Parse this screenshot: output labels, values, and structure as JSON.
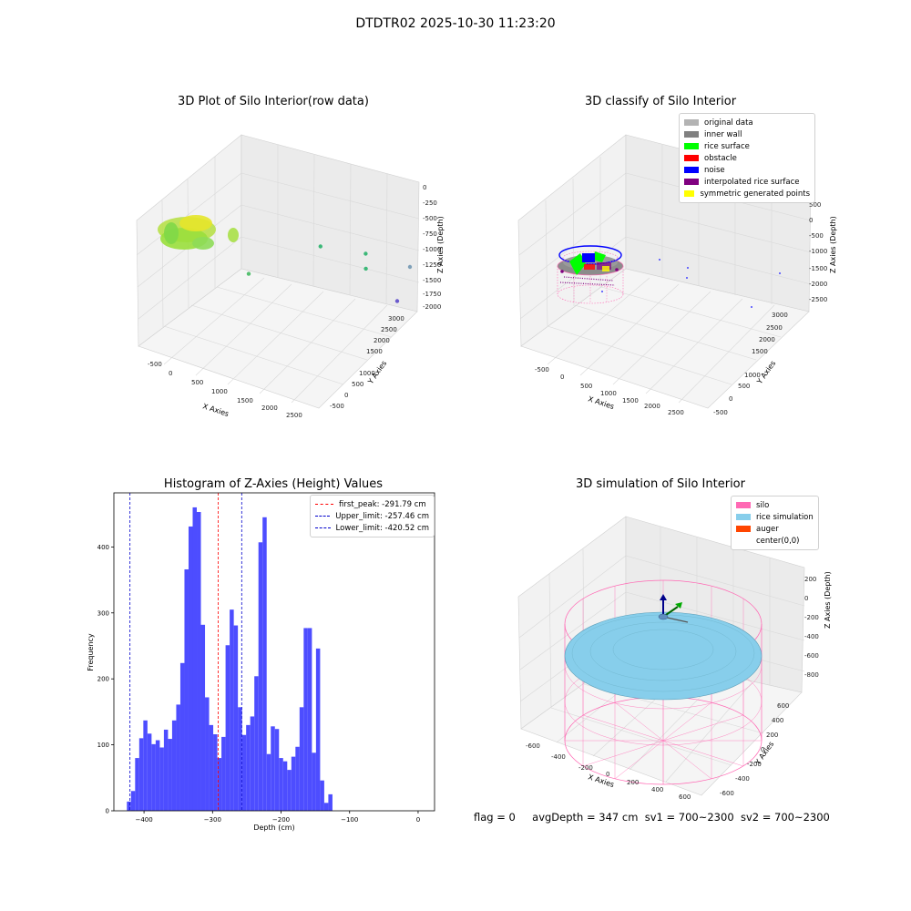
{
  "figure": {
    "suptitle": "DTDTR02 2025-10-30 11:23:20",
    "status": {
      "flag": "flag = 0",
      "avg_depth": "avgDepth = 347 cm",
      "sv1": "sv1 = 700~2300",
      "sv2": "sv2 = 700~2300"
    }
  },
  "colors": {
    "histogram_bar": "#4d4dff",
    "first_peak_line": "#ff0000",
    "limit_line": "#0000cc",
    "silo_wire": "#ff69b4",
    "rice_sim": "#87ceeb",
    "auger": "#ff4500",
    "pane": "#f2f2f2",
    "grid": "#dcdcdc"
  },
  "chart_data": [
    {
      "type": "scatter",
      "title": "3D Plot of Silo Interior(row data)",
      "xlabel": "X Axies",
      "ylabel": "Y Axies",
      "zlabel": "Z Axies (Depth)",
      "x_ticks": [
        "-500",
        "0",
        "500",
        "1000",
        "1500",
        "2000",
        "2500"
      ],
      "y_ticks": [
        "-500",
        "0",
        "500",
        "1000",
        "1500",
        "2000",
        "2500",
        "3000"
      ],
      "z_ticks": [
        "0",
        "-250",
        "-500",
        "-750",
        "-1000",
        "-1250",
        "-1500",
        "-1750",
        "-2000"
      ],
      "points": [
        {
          "x": -200,
          "y": 600,
          "z": -300
        },
        {
          "x": 900,
          "y": 2000,
          "z": -1300
        },
        {
          "x": 1700,
          "y": 2000,
          "z": -1300
        },
        {
          "x": 1800,
          "y": 1800,
          "z": -1500
        },
        {
          "x": 500,
          "y": 200,
          "z": -1200
        },
        {
          "x": 2600,
          "y": 3000,
          "z": -1800
        },
        {
          "x": 2500,
          "y": 1500,
          "z": -1900
        }
      ]
    },
    {
      "type": "scatter",
      "title": "3D classify of Silo Interior",
      "xlabel": "X Axies",
      "ylabel": "Y Axies",
      "zlabel": "Z Axies (Depth)",
      "x_ticks": [
        "-500",
        "0",
        "500",
        "1000",
        "1500",
        "2000",
        "2500"
      ],
      "y_ticks": [
        "-500",
        "0",
        "500",
        "1000",
        "1500",
        "2000",
        "2500",
        "3000"
      ],
      "z_ticks": [
        "500",
        "0",
        "-500",
        "-1000",
        "-1500",
        "-2000",
        "-2500"
      ],
      "legend": [
        {
          "label": "original data",
          "color": "#b3b3b3"
        },
        {
          "label": "inner wall",
          "color": "#808080"
        },
        {
          "label": "rice surface",
          "color": "#00ff00"
        },
        {
          "label": "obstacle",
          "color": "#ff0000"
        },
        {
          "label": "noise",
          "color": "#0000ff"
        },
        {
          "label": "interpolated rice surface",
          "color": "#800080"
        },
        {
          "label": "symmetric generated points",
          "color": "#ffff00"
        }
      ]
    },
    {
      "type": "bar",
      "title": "Histogram of Z-Axies (Height) Values",
      "xlabel": "Depth (cm)",
      "ylabel": "Frequency",
      "xlim": [
        -444,
        24
      ],
      "ylim": [
        0,
        482
      ],
      "x_ticks": [
        -400,
        -300,
        -200,
        -100,
        0
      ],
      "y_ticks": [
        0,
        100,
        200,
        300,
        400
      ],
      "bin_start": -425,
      "bin_width": 6,
      "values": [
        14,
        30,
        80,
        110,
        137,
        117,
        101,
        107,
        96,
        123,
        109,
        137,
        161,
        224,
        366,
        431,
        460,
        453,
        282,
        172,
        130,
        116,
        80,
        112,
        251,
        305,
        281,
        157,
        115,
        130,
        143,
        204,
        407,
        445,
        86,
        128,
        124,
        80,
        75,
        62,
        82,
        97,
        157,
        277,
        277,
        88,
        246,
        46,
        12,
        25
      ],
      "vlines": [
        {
          "label": "first_peak: -291.79 cm",
          "value": -291.79,
          "color": "#ff0000"
        },
        {
          "label": "Upper_limit: -257.46 cm",
          "value": -257.46,
          "color": "#0000cc"
        },
        {
          "label": "Lower_limit: -420.52 cm",
          "value": -420.52,
          "color": "#0000cc"
        }
      ]
    },
    {
      "type": "scatter",
      "title": "3D simulation of Silo Interior",
      "xlabel": "X Axies",
      "ylabel": "Y Axies",
      "zlabel": "Z Axies (Depth)",
      "x_ticks": [
        "-600",
        "-400",
        "-200",
        "0",
        "200",
        "400",
        "600"
      ],
      "y_ticks": [
        "-600",
        "-400",
        "-200",
        "0",
        "200",
        "400",
        "600"
      ],
      "z_ticks": [
        "200",
        "0",
        "-200",
        "-400",
        "-600",
        "-800"
      ],
      "legend": [
        {
          "label": "silo",
          "color": "#ff69b4"
        },
        {
          "label": "rice simulation",
          "color": "#87ceeb"
        },
        {
          "label": "auger",
          "color": "#ff4500"
        },
        {
          "label": "center(0,0)",
          "color": "#ffffff"
        }
      ]
    }
  ]
}
